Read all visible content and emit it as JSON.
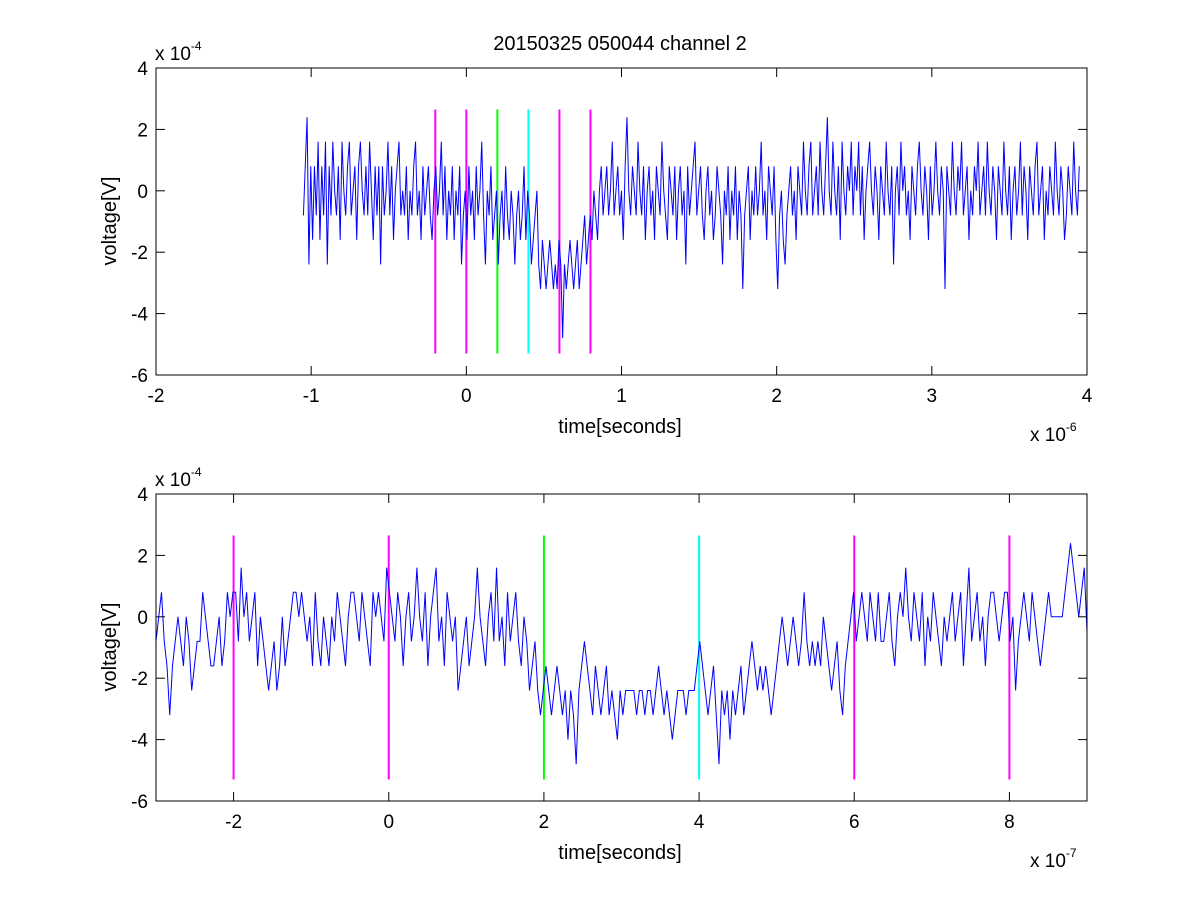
{
  "figure": {
    "title": "20150325 050044 channel 2"
  },
  "chart_data": [
    {
      "type": "line",
      "xlabel": "time[seconds]",
      "ylabel": "voltage[V]",
      "x_multiplier_base": "x 10",
      "x_multiplier_exp": "-6",
      "y_multiplier_base": "x 10",
      "y_multiplier_exp": "-4",
      "xlim": [
        -2,
        4
      ],
      "ylim": [
        -6,
        4
      ],
      "xticks": [
        "-2",
        "-1",
        "0",
        "1",
        "2",
        "3",
        "4"
      ],
      "yticks": [
        "4",
        "2",
        "0",
        "-2",
        "-4",
        "-6"
      ],
      "trace_color": "#0000ff",
      "series_x_range": [
        -1.05,
        3.95
      ],
      "series_values_e4": [
        -0.8,
        0.8,
        2.4,
        -2.4,
        0.8,
        -1.6,
        0.8,
        -0.8,
        1.6,
        -1.6,
        0.8,
        -0.8,
        1.6,
        -2.4,
        0.8,
        -0.8,
        1.6,
        0,
        -0.8,
        0.8,
        -1.6,
        1.6,
        0,
        -0.8,
        0.8,
        1.6,
        -0.8,
        0,
        0.8,
        -1.6,
        0.8,
        1.6,
        0,
        -0.8,
        0.8,
        -0.8,
        1.6,
        0,
        -1.6,
        0.8,
        -0.8,
        0.8,
        -2.4,
        0.8,
        -0.8,
        0,
        1.6,
        -0.8,
        0.8,
        -1.6,
        0,
        0.8,
        1.6,
        -0.8,
        0,
        -0.8,
        0.8,
        -1.6,
        0,
        -0.8,
        0.8,
        1.6,
        -0.8,
        0,
        -1.6,
        0.8,
        -0.8,
        0,
        0.8,
        -0.8,
        -1.6,
        0,
        0.8,
        -0.8,
        0,
        1.6,
        -0.8,
        0.8,
        -1.6,
        0,
        -0.8,
        0.8,
        -1.6,
        0,
        -0.8,
        0.8,
        -2.4,
        -0.8,
        0,
        -1.6,
        0.8,
        -0.8,
        0,
        -1.6,
        0.8,
        -0.8,
        0,
        1.6,
        -0.8,
        -2.4,
        0,
        -0.8,
        0.8,
        -1.6,
        -0.8,
        0,
        -2.4,
        -0.8,
        0,
        -1.6,
        0.8,
        -0.8,
        -1.6,
        0,
        -0.8,
        -2.4,
        -0.8,
        0,
        -1.6,
        -0.8,
        0.8,
        -1.6,
        0,
        -0.8,
        -2.4,
        -1.6,
        -0.8,
        0,
        -2.4,
        -3.2,
        -1.6,
        -2.4,
        -3.2,
        -2.4,
        -1.6,
        -2.4,
        -3.2,
        -2.4,
        -3.2,
        -1.6,
        -2.4,
        -4.8,
        -2.4,
        -3.2,
        -2.4,
        -1.6,
        -2.4,
        -3.2,
        -2.4,
        -1.6,
        -3.2,
        -2.4,
        -1.6,
        -0.8,
        -2.4,
        -1.6,
        -0.8,
        -1.6,
        0,
        -0.8,
        -1.6,
        0,
        0.8,
        -0.8,
        0,
        0.8,
        -0.8,
        0,
        1.6,
        -0.8,
        0,
        0.8,
        -0.8,
        0,
        -1.6,
        0.8,
        2.4,
        0,
        -0.8,
        0.8,
        0,
        -0.8,
        1.6,
        0,
        -0.8,
        0.8,
        -1.6,
        0,
        0.8,
        -0.8,
        0,
        -1.6,
        0.8,
        0,
        -0.8,
        1.6,
        0,
        -0.8,
        -1.6,
        0.8,
        0,
        -0.8,
        0.8,
        -1.6,
        0,
        0.8,
        -0.8,
        0,
        -2.4,
        0.8,
        -0.8,
        0,
        0.8,
        1.6,
        -0.8,
        0,
        0.8,
        -0.8,
        -1.6,
        0,
        0.8,
        -0.8,
        0,
        -1.6,
        -0.8,
        0.8,
        0,
        -0.8,
        -2.4,
        0,
        -0.8,
        0.8,
        -1.6,
        0,
        -0.8,
        0.8,
        -1.6,
        0,
        -0.8,
        -3.2,
        -0.8,
        0,
        0.8,
        -1.6,
        0,
        -0.8,
        0.8,
        -0.8,
        0,
        1.6,
        -0.8,
        0,
        -1.6,
        0.8,
        0,
        -0.8,
        0.8,
        -1.6,
        -3.2,
        -0.8,
        0,
        -1.6,
        -2.4,
        -0.8,
        0,
        0.8,
        -0.8,
        0,
        -1.6,
        0.8,
        0,
        -0.8,
        1.6,
        0,
        -0.8,
        0.8,
        1.6,
        -0.8,
        0,
        0.8,
        -0.8,
        1.6,
        0,
        -0.8,
        0.8,
        2.4,
        0,
        -0.8,
        1.6,
        0,
        -0.8,
        0.8,
        -1.6,
        1.6,
        0,
        -0.8,
        0.8,
        0,
        1.6,
        -0.8,
        0.8,
        0,
        1.6,
        -0.8,
        0.8,
        -1.6,
        0,
        0.8,
        1.6,
        0,
        -0.8,
        0.8,
        0,
        -1.6,
        0.8,
        0,
        -0.8,
        1.6,
        0,
        -0.8,
        0.8,
        -2.4,
        0,
        0.8,
        -0.8,
        1.6,
        0,
        0.8,
        -0.8,
        0,
        -1.6,
        0.8,
        0,
        -0.8,
        0.8,
        1.6,
        0,
        -0.8,
        0.8,
        0,
        -1.6,
        0.8,
        -0.8,
        0,
        1.6,
        0,
        -0.8,
        0.8,
        0,
        -3.2,
        0.8,
        0,
        -0.8,
        1.6,
        0,
        -0.8,
        0.8,
        0,
        1.6,
        -0.8,
        0,
        0.8,
        -1.6,
        0,
        -0.8,
        0.8,
        0,
        1.6,
        -0.8,
        0,
        0.8,
        -0.8,
        1.6,
        0,
        -0.8,
        0.8,
        0,
        -1.6,
        0.8,
        0,
        -0.8,
        1.6,
        0,
        -0.8,
        0.8,
        -1.6,
        0,
        0.8,
        -0.8,
        0,
        1.6,
        -0.8,
        0.8,
        0,
        -1.6,
        0.8,
        0,
        -0.8,
        0.8,
        1.6,
        -0.8,
        0,
        0.8,
        -1.6,
        0,
        -0.8,
        0.8,
        0,
        -0.8,
        1.6,
        0,
        -0.8,
        0.8,
        0,
        -1.6,
        -0.8,
        0.8,
        0,
        -0.8,
        1.6,
        0,
        -0.8,
        0.8
      ],
      "markers": [
        {
          "x": -0.2,
          "color": "#ff00ff"
        },
        {
          "x": 0.0,
          "color": "#ff00ff"
        },
        {
          "x": 0.2,
          "color": "#00ff00"
        },
        {
          "x": 0.4,
          "color": "#00ffff"
        },
        {
          "x": 0.6,
          "color": "#ff00ff"
        },
        {
          "x": 0.8,
          "color": "#ff00ff"
        }
      ],
      "marker_y_range": [
        -5.3,
        2.65
      ]
    },
    {
      "type": "line",
      "xlabel": "time[seconds]",
      "ylabel": "voltage[V]",
      "x_multiplier_base": "x 10",
      "x_multiplier_exp": "-7",
      "y_multiplier_base": "x 10",
      "y_multiplier_exp": "-4",
      "xlim": [
        -3,
        9
      ],
      "ylim": [
        -6,
        4
      ],
      "xticks": [
        "-2",
        "0",
        "2",
        "4",
        "6",
        "8"
      ],
      "yticks": [
        "4",
        "2",
        "0",
        "-2",
        "-4",
        "-6"
      ],
      "trace_color": "#0000ff",
      "series_x_range": [
        -3,
        9
      ],
      "series_values_e4": [
        -0.8,
        0,
        0.8,
        -0.8,
        -1.6,
        -3.2,
        -1.6,
        -0.8,
        0,
        -0.8,
        -1.6,
        0,
        -0.8,
        -2.4,
        -1.6,
        -0.8,
        -0.8,
        0.8,
        0,
        -0.8,
        -1.6,
        -1.6,
        -0.8,
        0,
        -1.6,
        -0.8,
        0.8,
        0,
        0.8,
        0.8,
        -0.8,
        1.6,
        0,
        0.8,
        -0.8,
        0,
        0.8,
        -1.6,
        0,
        -0.8,
        -1.6,
        -2.4,
        -1.6,
        -0.8,
        -2.4,
        -1.6,
        0,
        -1.6,
        -0.8,
        0,
        0.8,
        0.8,
        0,
        0.8,
        0,
        -0.8,
        0,
        -1.6,
        0.8,
        -0.8,
        -1.6,
        0,
        -0.8,
        -1.6,
        0,
        -0.8,
        0.8,
        0,
        -0.8,
        -1.6,
        0,
        0.8,
        0.8,
        0,
        -0.8,
        0.8,
        0,
        -0.8,
        -1.6,
        0.8,
        0,
        0.8,
        0,
        -0.8,
        1.6,
        0.8,
        0,
        -0.8,
        0.8,
        0,
        -1.6,
        0,
        0.8,
        -0.8,
        0,
        1.6,
        0,
        -0.8,
        0.8,
        -1.6,
        0,
        0.8,
        1.6,
        -0.8,
        0,
        -1.6,
        0.8,
        0,
        -0.8,
        0,
        -2.4,
        -1.6,
        -0.8,
        0,
        -1.6,
        -0.8,
        0,
        1.6,
        0,
        -0.8,
        -1.6,
        0,
        0.8,
        -0.8,
        1.6,
        -0.8,
        0,
        -1.6,
        0.8,
        -0.8,
        0,
        0.8,
        -0.8,
        -1.6,
        0,
        -0.8,
        -2.4,
        -1.6,
        -0.8,
        -2.4,
        -3.2,
        -2.4,
        -1.6,
        -2.4,
        -3.2,
        -2.4,
        -1.6,
        -2.4,
        -3.2,
        -2.4,
        -4.0,
        -2.4,
        -3.2,
        -4.8,
        -2.4,
        -1.6,
        -0.8,
        -1.6,
        -2.4,
        -3.2,
        -1.6,
        -2.4,
        -3.2,
        -2.4,
        -1.6,
        -3.2,
        -2.4,
        -3.2,
        -4.0,
        -2.4,
        -3.2,
        -2.4,
        -2.4,
        -2.4,
        -2.4,
        -3.2,
        -2.4,
        -2.4,
        -3.2,
        -2.4,
        -2.4,
        -3.2,
        -2.4,
        -1.6,
        -2.4,
        -3.2,
        -2.4,
        -3.2,
        -4.0,
        -3.2,
        -2.4,
        -2.4,
        -2.4,
        -3.2,
        -2.4,
        -2.4,
        -2.4,
        -1.6,
        -0.8,
        -1.6,
        -2.4,
        -3.2,
        -2.4,
        -1.6,
        -3.2,
        -4.8,
        -2.4,
        -3.2,
        -2.4,
        -4.0,
        -2.4,
        -3.2,
        -2.4,
        -1.6,
        -3.2,
        -2.4,
        -1.6,
        -0.8,
        -1.6,
        -2.4,
        -1.6,
        -2.4,
        -1.6,
        -2.4,
        -3.2,
        -2.4,
        -1.6,
        -0.8,
        0,
        -0.8,
        -1.6,
        -0.8,
        0,
        -0.8,
        -1.6,
        -0.8,
        0.8,
        -0.8,
        -1.6,
        -0.8,
        -1.6,
        -0.8,
        -1.6,
        0,
        -0.8,
        -1.6,
        -2.4,
        -1.6,
        -0.8,
        -2.4,
        -3.2,
        -1.6,
        -0.8,
        0,
        0.8,
        -0.8,
        0,
        0.8,
        0,
        -0.8,
        0.8,
        0,
        -0.8,
        0.8,
        -0.8,
        -0.8,
        0,
        0.8,
        -0.8,
        -1.6,
        0,
        0.8,
        0,
        1.6,
        0,
        -0.8,
        0.8,
        0,
        -0.8,
        0.8,
        -1.6,
        0,
        -0.8,
        0.8,
        0,
        -0.8,
        -1.6,
        0,
        -0.8,
        0,
        0.8,
        -0.8,
        0,
        0.8,
        -1.6,
        0,
        1.6,
        -0.8,
        0,
        0.8,
        -0.8,
        0,
        -1.6,
        0,
        0.8,
        0.8,
        0,
        -0.8,
        0,
        0.8,
        0.8,
        -0.8,
        0,
        -2.4,
        -0.8,
        0,
        0.8,
        0,
        -0.8,
        0.8,
        0,
        -0.8,
        -1.6,
        -0.8,
        0,
        0.8,
        0,
        0,
        0,
        0,
        0,
        0.8,
        1.6,
        2.4,
        1.6,
        0.8,
        0,
        0.8,
        1.6,
        -0.5
      ],
      "markers": [
        {
          "x": -2,
          "color": "#ff00ff"
        },
        {
          "x": 0,
          "color": "#ff00ff"
        },
        {
          "x": 2,
          "color": "#00ff00"
        },
        {
          "x": 4,
          "color": "#00ffff"
        },
        {
          "x": 6,
          "color": "#ff00ff"
        },
        {
          "x": 8,
          "color": "#ff00ff"
        }
      ],
      "marker_y_range": [
        -5.3,
        2.65
      ]
    }
  ]
}
